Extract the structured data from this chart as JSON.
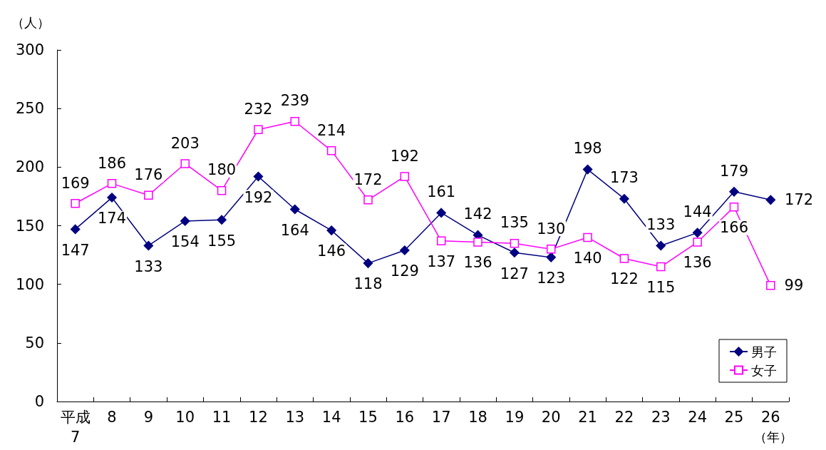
{
  "chart_data": {
    "type": "line",
    "ylabel": "（人）",
    "xlabel": "（年）",
    "categories": [
      "平成\n7",
      "8",
      "9",
      "10",
      "11",
      "12",
      "13",
      "14",
      "15",
      "16",
      "17",
      "18",
      "19",
      "20",
      "21",
      "22",
      "23",
      "24",
      "25",
      "26"
    ],
    "series": [
      {
        "name": "男子",
        "color": "#000080",
        "marker": "diamond",
        "values": [
          147,
          174,
          133,
          154,
          155,
          192,
          164,
          146,
          118,
          129,
          161,
          142,
          127,
          123,
          198,
          173,
          133,
          144,
          179,
          172
        ]
      },
      {
        "name": "女子",
        "color": "#ff00ff",
        "marker": "square",
        "values": [
          169,
          186,
          176,
          203,
          180,
          232,
          239,
          214,
          172,
          192,
          137,
          136,
          135,
          130,
          140,
          122,
          115,
          136,
          166,
          99
        ]
      }
    ],
    "ylim": [
      0,
      300
    ],
    "yticks": [
      0,
      50,
      100,
      150,
      200,
      250,
      300
    ],
    "grid": false,
    "legend": "bottom right",
    "data_labels": true,
    "line_style": "solid"
  }
}
